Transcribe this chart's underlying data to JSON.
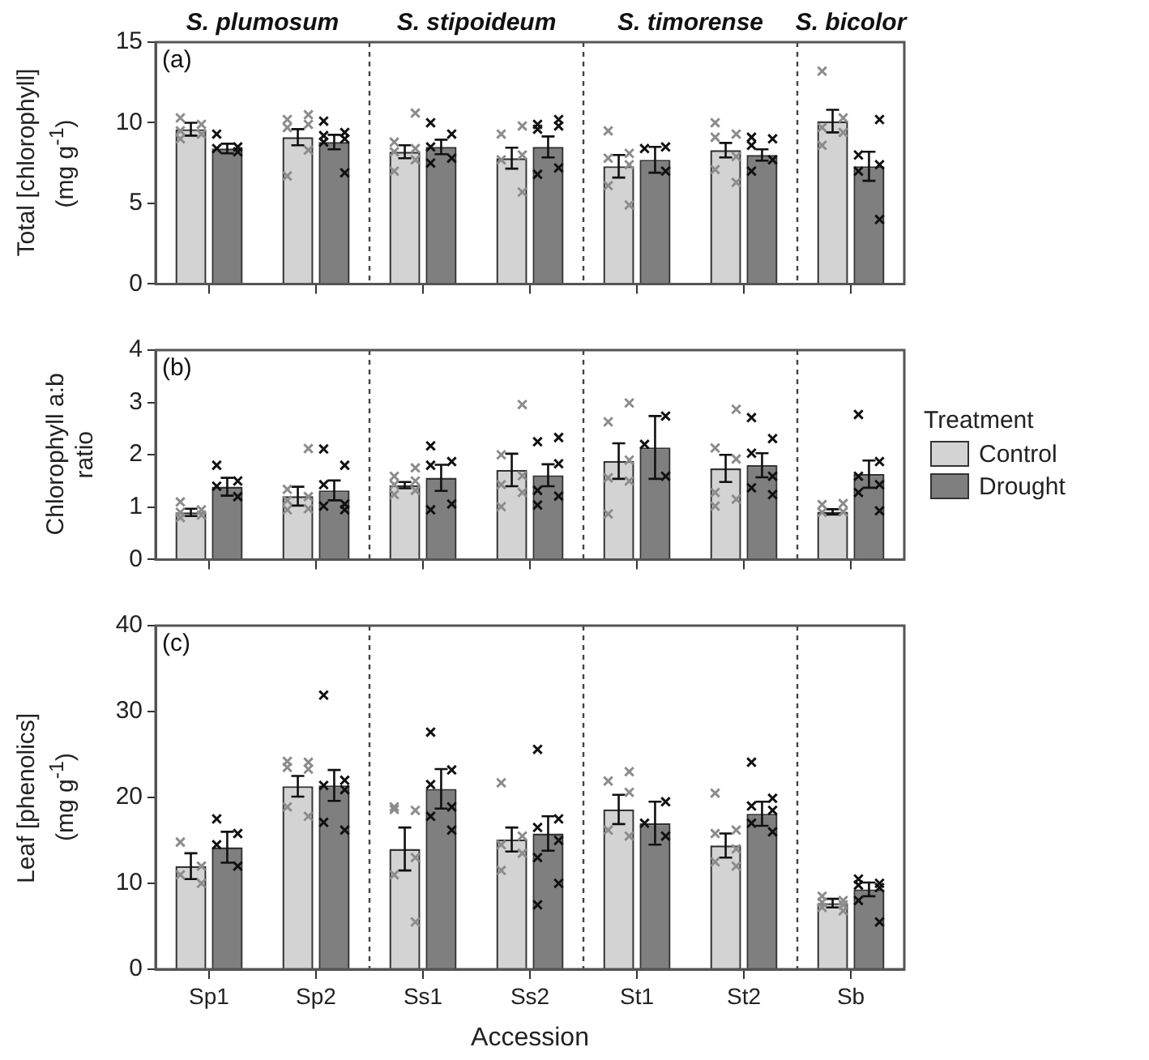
{
  "chart_data": [
    {
      "type": "bar",
      "title": "(a)",
      "ylabel": "Total [chlorophyll]\n(mg g$^{-1}$)",
      "categories": [
        "Sp1",
        "Sp2",
        "Ss1",
        "Ss2",
        "St1",
        "St2",
        "Sb"
      ],
      "ylim": [
        0,
        15
      ],
      "yticks": [
        0,
        5,
        10,
        15
      ],
      "grid": false,
      "legend": false,
      "tick_labels": "y",
      "marker": "cross",
      "annotations": [
        "S. plumosum",
        "S. stipoideum",
        "S. timorense",
        "S. bicolor"
      ],
      "series": [
        {
          "color": "#d3d3d3",
          "values": [
            9.6,
            9.1,
            8.2,
            7.8,
            7.3,
            8.3,
            10.1
          ],
          "errors": [
            0.4,
            0.5,
            0.4,
            0.65,
            0.7,
            0.45,
            0.7
          ]
        },
        {
          "color": "#7f7f7f",
          "values": [
            8.4,
            8.8,
            8.5,
            8.5,
            7.7,
            8.0,
            7.3
          ],
          "errors": [
            0.3,
            0.45,
            0.45,
            0.65,
            0.8,
            0.35,
            0.9
          ]
        },
        {
          "type": "scatter",
          "color": "#8c8c8c",
          "x": [
            "Sp1",
            "Sp1",
            "Sp1",
            "Sp1",
            "Sp1",
            "Sp2",
            "Sp2",
            "Sp2",
            "Sp2",
            "Sp2",
            "Sp2",
            "Ss1",
            "Ss1",
            "Ss1",
            "Ss1",
            "Ss1",
            "Ss1",
            "Ss2",
            "Ss2",
            "Ss2",
            "Ss2",
            "Ss2",
            "St1",
            "St1",
            "St1",
            "St1",
            "St1",
            "St1",
            "St2",
            "St2",
            "St2",
            "St2",
            "St2",
            "St2",
            "Sb",
            "Sb",
            "Sb",
            "Sb",
            "Sb"
          ],
          "values": [
            10.3,
            9.9,
            9.5,
            9.3,
            9.0,
            10.5,
            10.2,
            9.9,
            9.7,
            8.3,
            6.7,
            10.6,
            8.8,
            8.4,
            8.2,
            7.7,
            7.0,
            9.8,
            9.3,
            8.0,
            7.7,
            5.7,
            9.5,
            8.1,
            7.8,
            7.4,
            6.1,
            4.9,
            10.0,
            9.3,
            9.1,
            7.9,
            7.1,
            6.3,
            13.2,
            10.3,
            9.7,
            9.4,
            8.6
          ]
        },
        {
          "type": "scatter",
          "color": "#111111",
          "x": [
            "Sp1",
            "Sp1",
            "Sp1",
            "Sp1",
            "Sp2",
            "Sp2",
            "Sp2",
            "Sp2",
            "Sp2",
            "Sp2",
            "Ss1",
            "Ss1",
            "Ss1",
            "Ss1",
            "Ss1",
            "Ss2",
            "Ss2",
            "Ss2",
            "Ss2",
            "Ss2",
            "Ss2",
            "St1",
            "St1",
            "St1",
            "St2",
            "St2",
            "St2",
            "St2",
            "St2",
            "Sb",
            "Sb",
            "Sb",
            "Sb",
            "Sb"
          ],
          "values": [
            9.3,
            8.5,
            8.4,
            8.2,
            10.1,
            9.4,
            9.2,
            9.0,
            8.8,
            6.9,
            10.0,
            9.3,
            8.5,
            7.8,
            7.5,
            10.2,
            9.9,
            9.8,
            9.6,
            7.2,
            6.8,
            8.5,
            8.4,
            7.0,
            9.1,
            9.0,
            8.6,
            7.7,
            7.0,
            10.2,
            8.0,
            7.4,
            7.0,
            4.0
          ]
        }
      ]
    },
    {
      "type": "bar",
      "title": "(b)",
      "ylabel": "Chlorophyll a:b ratio",
      "categories": [
        "Sp1",
        "Sp2",
        "Ss1",
        "Ss2",
        "St1",
        "St2",
        "Sb"
      ],
      "ylim": [
        0,
        4
      ],
      "yticks": [
        0,
        1,
        2,
        3,
        4
      ],
      "grid": false,
      "legend": "right",
      "legend_title": "Treatment",
      "tick_labels": "y",
      "marker": "cross",
      "series": [
        {
          "name": "Control",
          "color": "#d3d3d3",
          "values": [
            0.9,
            1.21,
            1.42,
            1.71,
            1.88,
            1.74,
            0.91
          ],
          "errors": [
            0.07,
            0.18,
            0.06,
            0.31,
            0.34,
            0.26,
            0.05
          ]
        },
        {
          "name": "Drought",
          "color": "#7f7f7f",
          "values": [
            1.39,
            1.32,
            1.56,
            1.61,
            2.14,
            1.8,
            1.63
          ],
          "errors": [
            0.17,
            0.19,
            0.25,
            0.21,
            0.6,
            0.23,
            0.26
          ]
        },
        {
          "type": "scatter",
          "color": "#8c8c8c",
          "x": [
            "Sp1",
            "Sp1",
            "Sp1",
            "Sp1",
            "Sp1",
            "Sp2",
            "Sp2",
            "Sp2",
            "Sp2",
            "Sp2",
            "Sp2",
            "Ss1",
            "Ss1",
            "Ss1",
            "Ss1",
            "Ss1",
            "Ss1",
            "Ss2",
            "Ss2",
            "Ss2",
            "Ss2",
            "Ss2",
            "Ss2",
            "St1",
            "St1",
            "St1",
            "St1",
            "St1",
            "St1",
            "St2",
            "St2",
            "St2",
            "St2",
            "St2",
            "St2",
            "Sb",
            "Sb",
            "Sb",
            "Sb"
          ],
          "values": [
            1.1,
            0.95,
            0.9,
            0.85,
            0.8,
            2.12,
            1.34,
            1.2,
            1.13,
            0.97,
            0.95,
            1.75,
            1.59,
            1.5,
            1.43,
            1.32,
            1.24,
            2.96,
            2.0,
            1.6,
            1.43,
            1.28,
            1.01,
            2.99,
            2.63,
            1.9,
            1.56,
            1.5,
            0.87,
            2.87,
            2.13,
            1.92,
            1.28,
            1.15,
            1.02,
            1.07,
            1.05,
            0.91,
            0.9
          ]
        },
        {
          "type": "scatter",
          "color": "#111111",
          "x": [
            "Sp1",
            "Sp1",
            "Sp1",
            "Sp1",
            "Sp2",
            "Sp2",
            "Sp2",
            "Sp2",
            "Sp2",
            "Sp2",
            "Ss1",
            "Ss1",
            "Ss1",
            "Ss1",
            "Ss1",
            "Ss2",
            "Ss2",
            "Ss2",
            "Ss2",
            "Ss2",
            "Ss2",
            "St1",
            "St1",
            "St1",
            "St2",
            "St2",
            "St2",
            "St2",
            "St2",
            "St2",
            "Sb",
            "Sb",
            "Sb",
            "Sb",
            "Sb",
            "Sb"
          ],
          "values": [
            1.8,
            1.5,
            1.4,
            1.2,
            2.11,
            1.8,
            1.43,
            1.06,
            1.02,
            0.95,
            2.17,
            1.87,
            1.8,
            1.06,
            0.95,
            2.33,
            2.25,
            1.83,
            1.32,
            1.21,
            1.04,
            2.74,
            2.2,
            1.59,
            2.71,
            2.31,
            2.03,
            1.59,
            1.37,
            1.24,
            2.77,
            1.87,
            1.59,
            1.43,
            1.28,
            0.93
          ]
        }
      ]
    },
    {
      "type": "bar",
      "title": "(c)",
      "ylabel": "Leaf [phenolics]\n(mg g$^{-1}$)",
      "xlabel": "Accession",
      "categories": [
        "Sp1",
        "Sp2",
        "Ss1",
        "Ss2",
        "St1",
        "St2",
        "Sb"
      ],
      "ylim": [
        0,
        40
      ],
      "yticks": [
        0,
        10,
        20,
        30,
        40
      ],
      "grid": false,
      "legend": false,
      "marker": "cross",
      "series": [
        {
          "color": "#d3d3d3",
          "values": [
            12.0,
            21.3,
            14.0,
            15.1,
            18.6,
            14.4,
            7.7
          ],
          "errors": [
            1.5,
            1.2,
            2.5,
            1.4,
            1.7,
            1.4,
            0.5
          ]
        },
        {
          "color": "#7f7f7f",
          "values": [
            14.2,
            21.4,
            21.0,
            15.8,
            17.0,
            18.1,
            9.3
          ],
          "errors": [
            1.8,
            1.8,
            2.3,
            2.0,
            2.5,
            1.4,
            0.8
          ]
        },
        {
          "type": "scatter",
          "color": "#8c8c8c",
          "x": [
            "Sp1",
            "Sp1",
            "Sp1",
            "Sp1",
            "Sp2",
            "Sp2",
            "Sp2",
            "Sp2",
            "Sp2",
            "Sp2",
            "Ss1",
            "Ss1",
            "Ss1",
            "Ss1",
            "Ss1",
            "Ss1",
            "Ss2",
            "Ss2",
            "Ss2",
            "Ss2",
            "Ss2",
            "St1",
            "St1",
            "St1",
            "St1",
            "St1",
            "St2",
            "St2",
            "St2",
            "St2",
            "St2",
            "St2",
            "Sb",
            "Sb",
            "Sb",
            "Sb",
            "Sb",
            "Sb"
          ],
          "values": [
            14.8,
            12,
            11,
            10,
            24.2,
            24.1,
            23.5,
            23.3,
            18.9,
            17.8,
            18.6,
            18.5,
            18.9,
            13,
            11,
            5.5,
            21.7,
            15.5,
            14.5,
            13.5,
            11.5,
            23.0,
            21.9,
            20.6,
            16.2,
            15.5,
            20.5,
            16.2,
            15.8,
            14,
            12.5,
            12,
            8.5,
            8.0,
            7.8,
            7.5,
            7.2,
            6.8
          ]
        },
        {
          "type": "scatter",
          "color": "#111111",
          "x": [
            "Sp1",
            "Sp1",
            "Sp1",
            "Sp1",
            "Sp2",
            "Sp2",
            "Sp2",
            "Sp2",
            "Sp2",
            "Sp2",
            "Ss1",
            "Ss1",
            "Ss1",
            "Ss1",
            "Ss1",
            "Ss1",
            "Ss2",
            "Ss2",
            "Ss2",
            "Ss2",
            "Ss2",
            "Ss2",
            "Ss2",
            "St1",
            "St1",
            "St1",
            "St2",
            "St2",
            "St2",
            "St2",
            "St2",
            "St2",
            "Sb",
            "Sb",
            "Sb",
            "Sb",
            "Sb",
            "Sb"
          ],
          "values": [
            17.5,
            15.8,
            14.5,
            12,
            31.9,
            22.0,
            21.4,
            20.9,
            17.1,
            16.2,
            27.6,
            23.2,
            21.5,
            18.9,
            17.8,
            16.2,
            25.6,
            17.5,
            16.5,
            15,
            13,
            10,
            7.5,
            19.5,
            17.0,
            15.5,
            24.1,
            19.9,
            19.0,
            18.5,
            17.0,
            16.0,
            10.5,
            10.0,
            9.8,
            9.5,
            8.0,
            5.5
          ]
        }
      ]
    }
  ]
}
